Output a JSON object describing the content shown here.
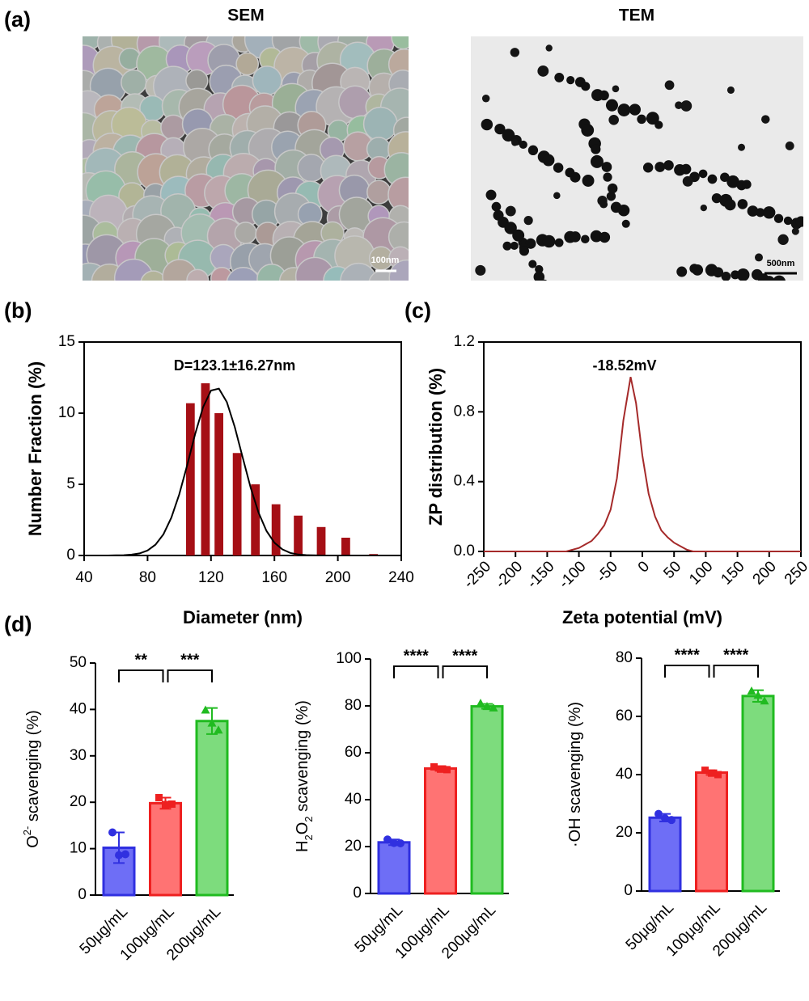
{
  "panel_labels": [
    "(a)",
    "(b)",
    "(c)",
    "(d)"
  ],
  "images": [
    {
      "title": "SEM",
      "scale_bar": "100nm"
    },
    {
      "title": "TEM",
      "scale_bar": "500nm"
    }
  ],
  "chart_data": [
    {
      "type": "bar",
      "xlabel": "Diameter (nm)",
      "ylabel": "Number Fraction (%)",
      "annotation": "D=123.1±16.27nm",
      "x": [
        107,
        116.5,
        125,
        136.5,
        148,
        161,
        175,
        189.5,
        205,
        222.5
      ],
      "values": [
        10.7,
        12.1,
        10.0,
        7.2,
        5.0,
        3.6,
        2.8,
        2.0,
        1.25,
        0.1
      ],
      "color": "#a50f15",
      "xlim": [
        40,
        240
      ],
      "xticks": [
        40,
        80,
        120,
        160,
        200,
        240
      ],
      "ylim": [
        0,
        15
      ],
      "yticks": [
        0,
        5,
        10,
        15
      ],
      "fit": {
        "color": "#000000",
        "x": [
          40,
          45,
          50,
          55,
          60,
          65,
          70,
          75,
          80,
          85,
          90,
          95,
          100,
          105,
          110,
          115,
          120,
          125,
          130,
          135,
          140,
          145,
          150,
          155,
          160,
          165,
          170,
          175,
          180,
          185,
          190,
          200,
          210,
          220,
          230,
          240
        ],
        "values": [
          0,
          0,
          0,
          0,
          0.01,
          0.02,
          0.06,
          0.15,
          0.35,
          0.76,
          1.49,
          2.66,
          4.3,
          6.35,
          8.53,
          10.42,
          11.59,
          11.72,
          10.78,
          9.03,
          6.88,
          4.77,
          3.01,
          1.73,
          0.9,
          0.43,
          0.18,
          0.07,
          0.03,
          0.01,
          0,
          0,
          0,
          0,
          0,
          0
        ]
      }
    },
    {
      "type": "line",
      "xlabel": "Zeta potential (mV)",
      "ylabel": "ZP distribution (%)",
      "annotation": "-18.52mV",
      "x": [
        -250,
        -120,
        -110,
        -100,
        -90,
        -80,
        -70,
        -60,
        -50,
        -40,
        -30,
        -18.52,
        -10,
        0,
        10,
        20,
        30,
        40,
        50,
        60,
        70,
        80,
        250
      ],
      "values": [
        0,
        0,
        0.01,
        0.02,
        0.04,
        0.06,
        0.1,
        0.15,
        0.24,
        0.42,
        0.75,
        1.0,
        0.85,
        0.55,
        0.33,
        0.2,
        0.12,
        0.08,
        0.05,
        0.03,
        0.01,
        0,
        0
      ],
      "color": "#a52a2a",
      "xlim": [
        -250,
        250
      ],
      "xticks": [
        -250,
        -200,
        -150,
        -100,
        -50,
        0,
        50,
        100,
        150,
        200,
        250
      ],
      "ylim": [
        0,
        1.2
      ],
      "yticks": [
        {
          "value": 0,
          "label": "0.0"
        },
        0.4,
        0.8,
        1.2
      ]
    },
    {
      "type": "bar",
      "ylabel_parts": [
        {
          "text": "O"
        },
        {
          "text": "2-",
          "script": "sup"
        },
        {
          "text": "  scavenging (%)"
        }
      ],
      "categories": [
        "50μg/mL",
        "100μg/mL",
        "200μg/mL"
      ],
      "values": [
        10.2,
        19.8,
        37.5
      ],
      "errors": [
        3.3,
        1.2,
        2.8
      ],
      "points": [
        [
          13.5,
          8.6,
          8.8
        ],
        [
          21.0,
          19.5,
          19.6
        ],
        [
          39.8,
          37.0,
          35.5
        ]
      ],
      "colors": [
        "#6e6ef6",
        "#ff7373",
        "#7ddc7d"
      ],
      "edge_colors": [
        "#3030e0",
        "#ee2020",
        "#20bb20"
      ],
      "markers": [
        "circle",
        "square",
        "triangle"
      ],
      "ylim": [
        0,
        50
      ],
      "yticks": [
        0,
        10,
        20,
        30,
        40,
        50
      ],
      "significance": [
        {
          "pair": [
            0,
            1
          ],
          "label": "**"
        },
        {
          "pair": [
            1,
            2
          ],
          "label": "***"
        }
      ]
    },
    {
      "type": "bar",
      "ylabel_parts": [
        {
          "text": "H"
        },
        {
          "text": "2",
          "script": "sub"
        },
        {
          "text": "O"
        },
        {
          "text": "2",
          "script": "sub"
        },
        {
          "text": "  scavenging (%)"
        }
      ],
      "categories": [
        "50μg/mL",
        "100μg/mL",
        "200μg/mL"
      ],
      "values": [
        21.8,
        53.3,
        79.8
      ],
      "errors": [
        1.2,
        1.0,
        1.0
      ],
      "points": [
        [
          23.0,
          21.5,
          21.4
        ],
        [
          54.0,
          53.0,
          52.8
        ],
        [
          81.0,
          79.6,
          79.0
        ]
      ],
      "colors": [
        "#6e6ef6",
        "#ff7373",
        "#7ddc7d"
      ],
      "edge_colors": [
        "#3030e0",
        "#ee2020",
        "#20bb20"
      ],
      "markers": [
        "circle",
        "square",
        "triangle"
      ],
      "ylim": [
        0,
        100
      ],
      "yticks": [
        0,
        20,
        40,
        60,
        80,
        100
      ],
      "significance": [
        {
          "pair": [
            0,
            1
          ],
          "label": "****"
        },
        {
          "pair": [
            1,
            2
          ],
          "label": "****"
        }
      ]
    },
    {
      "type": "bar",
      "ylabel_parts": [
        {
          "text": "·OH  scavenging (%)"
        }
      ],
      "categories": [
        "50μg/mL",
        "100μg/mL",
        "200μg/mL"
      ],
      "values": [
        25.2,
        40.7,
        67.0
      ],
      "errors": [
        1.3,
        0.8,
        2.0
      ],
      "points": [
        [
          26.5,
          25.0,
          24.4
        ],
        [
          41.5,
          40.5,
          40.0
        ],
        [
          68.6,
          67.2,
          65.2
        ]
      ],
      "colors": [
        "#6e6ef6",
        "#ff7373",
        "#7ddc7d"
      ],
      "edge_colors": [
        "#3030e0",
        "#ee2020",
        "#20bb20"
      ],
      "markers": [
        "circle",
        "square",
        "triangle"
      ],
      "ylim": [
        0,
        80
      ],
      "yticks": [
        0,
        20,
        40,
        60,
        80
      ],
      "significance": [
        {
          "pair": [
            0,
            1
          ],
          "label": "****"
        },
        {
          "pair": [
            1,
            2
          ],
          "label": "****"
        }
      ]
    }
  ]
}
